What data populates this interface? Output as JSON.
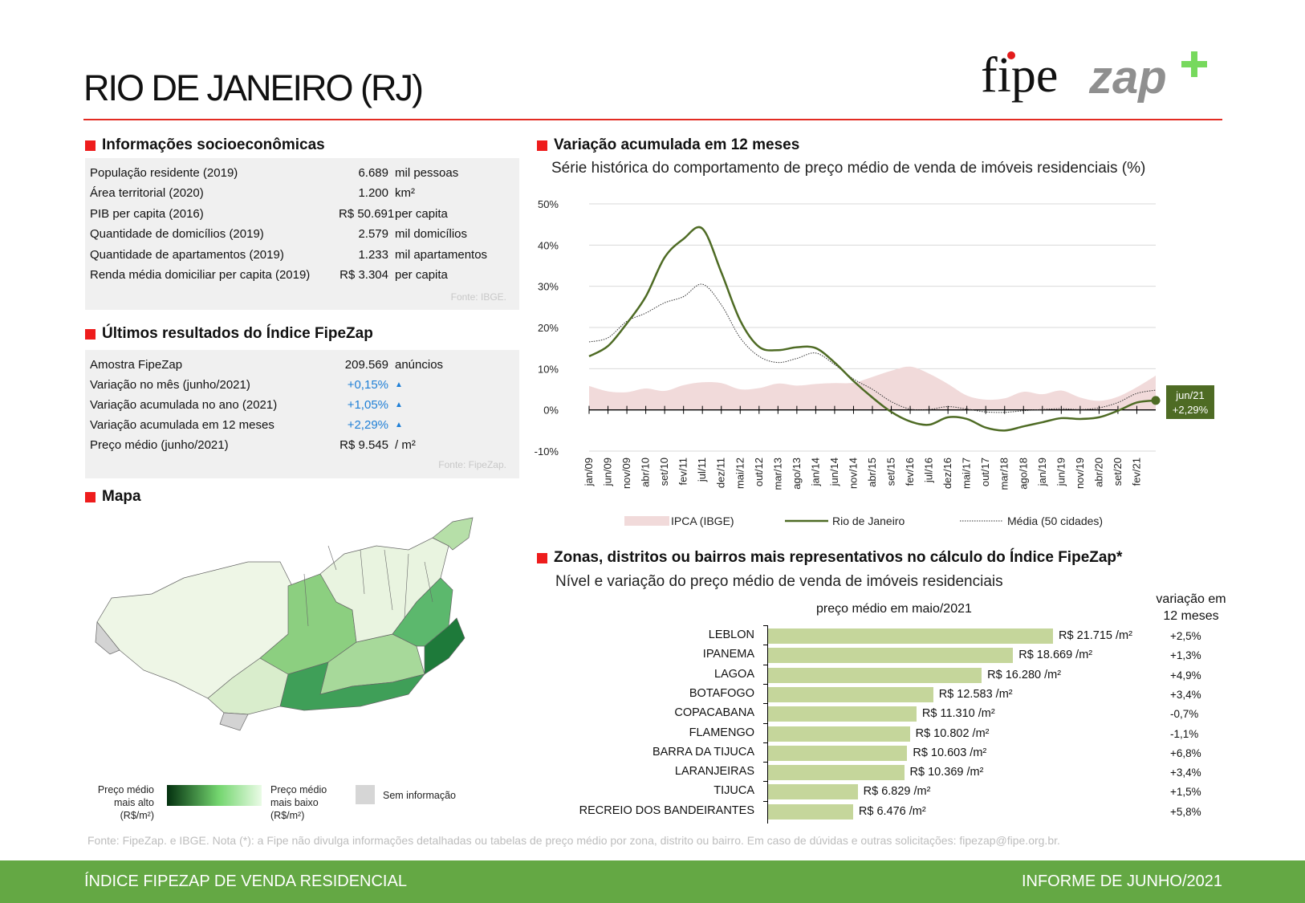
{
  "header": {
    "title": "RIO DE JANEIRO (RJ)",
    "logo_text": "fipe zap+"
  },
  "socio": {
    "heading": "Informações socioeconômicas",
    "rows": [
      {
        "label": "População residente (2019)",
        "value": "6.689",
        "unit": "mil pessoas"
      },
      {
        "label": "Área territorial (2020)",
        "value": "1.200",
        "unit": "km²"
      },
      {
        "label": "PIB per capita (2016)",
        "value": "R$ 50.691",
        "unit": "per capita"
      },
      {
        "label": "Quantidade de domicílios (2019)",
        "value": "2.579",
        "unit": "mil domicílios"
      },
      {
        "label": "Quantidade de apartamentos (2019)",
        "value": "1.233",
        "unit": "mil apartamentos"
      },
      {
        "label": "Renda média domiciliar per capita (2019)",
        "value": "R$ 3.304",
        "unit": "per capita"
      }
    ],
    "source": "Fonte: IBGE."
  },
  "results": {
    "heading": "Últimos resultados do Índice FipeZap",
    "rows": [
      {
        "label": "Amostra FipeZap",
        "value": "209.569",
        "unit": "anúncios"
      },
      {
        "label": "Variação no mês (junho/2021)",
        "value": "+0,15%",
        "unit": "▲"
      },
      {
        "label": "Variação acumulada no ano (2021)",
        "value": "+1,05%",
        "unit": "▲"
      },
      {
        "label": "Variação acumulada em 12 meses",
        "value": "+2,29%",
        "unit": "▲"
      },
      {
        "label": "Preço médio (junho/2021)",
        "value": "R$ 9.545",
        "unit": "/ m²"
      }
    ],
    "source": "Fonte: FipeZap."
  },
  "map": {
    "heading": "Mapa",
    "legend_high": "Preço médio mais alto (R$/m²)",
    "legend_low": "Preço médio mais baixo (R$/m²)",
    "legend_none": "Sem informação"
  },
  "chart_data": [
    {
      "type": "line",
      "heading": "Variação acumulada em 12 meses",
      "title": "Série histórica do comportamento de preço médio de venda de imóveis residenciais (%)",
      "ylim": [
        -10,
        50
      ],
      "yticks": [
        "50%",
        "40%",
        "30%",
        "20%",
        "10%",
        "0%",
        "-10%"
      ],
      "ytick_values": [
        50,
        40,
        30,
        20,
        10,
        0,
        -10
      ],
      "categories": [
        "jan/09",
        "jun/09",
        "nov/09",
        "abr/10",
        "set/10",
        "fev/11",
        "jul/11",
        "dez/11",
        "mai/12",
        "out/12",
        "mar/13",
        "ago/13",
        "jan/14",
        "jun/14",
        "nov/14",
        "abr/15",
        "set/15",
        "fev/16",
        "jul/16",
        "dez/16",
        "mai/17",
        "out/17",
        "mar/18",
        "ago/18",
        "jan/19",
        "jun/19",
        "nov/19",
        "abr/20",
        "set/20",
        "fev/21",
        "jun/21"
      ],
      "series": [
        {
          "name": "IPCA (IBGE)",
          "type": "area",
          "color": "#f1dada",
          "values": [
            5.8,
            4.5,
            4.3,
            5.2,
            4.6,
            6.0,
            6.7,
            6.5,
            5.0,
            5.3,
            6.4,
            5.9,
            6.3,
            6.5,
            6.6,
            8.0,
            9.5,
            10.5,
            8.8,
            6.3,
            3.5,
            2.5,
            2.8,
            4.4,
            3.8,
            4.7,
            3.0,
            2.2,
            3.2,
            5.5,
            8.3
          ]
        },
        {
          "name": "Rio de Janeiro",
          "type": "line",
          "color": "#4e6b24",
          "values": [
            13,
            15.5,
            21,
            27.5,
            37,
            41.5,
            44,
            33.4,
            21.7,
            15.3,
            14.5,
            15.2,
            15,
            11.5,
            7,
            3,
            -0.5,
            -2.8,
            -3.6,
            -1.8,
            -2.2,
            -4.3,
            -5,
            -4,
            -3,
            -2,
            -2.2,
            -1.8,
            -0.2,
            1.8,
            2.29
          ]
        },
        {
          "name": "Média (50 cidades)",
          "type": "dotted",
          "color": "#333333",
          "values": [
            16.5,
            17.5,
            21.5,
            23.5,
            26,
            27.5,
            30.5,
            25.5,
            17.5,
            13,
            11.5,
            12.5,
            13.8,
            11,
            7.5,
            5,
            2,
            0.2,
            0.1,
            0.8,
            0.2,
            -0.5,
            -0.6,
            -0.2,
            0.1,
            0.3,
            0.1,
            0.5,
            1.8,
            4,
            4.8
          ]
        }
      ],
      "annotation": {
        "label": "jun/21",
        "value": "+2,29%"
      },
      "legend": "bottom"
    },
    {
      "type": "bar",
      "heading": "Zonas, distritos ou bairros mais representativos no cálculo do Índice FipeZap*",
      "title": "Nível e variação do preço médio de venda de imóveis residenciais",
      "xlabel": "preço médio em maio/2021",
      "var_header": [
        "variação em",
        "12 meses"
      ],
      "color": "#c5d69b",
      "categories": [
        "LEBLON",
        "IPANEMA",
        "LAGOA",
        "BOTAFOGO",
        "COPACABANA",
        "FLAMENGO",
        "BARRA DA TIJUCA",
        "LARANJEIRAS",
        "TIJUCA",
        "RECREIO DOS BANDEIRANTES"
      ],
      "values": [
        21715,
        18669,
        16280,
        12583,
        11310,
        10802,
        10603,
        10369,
        6829,
        6476
      ],
      "value_labels": [
        "R$ 21.715 /m²",
        "R$ 18.669 /m²",
        "R$ 16.280 /m²",
        "R$ 12.583 /m²",
        "R$ 11.310 /m²",
        "R$ 10.802 /m²",
        "R$ 10.603 /m²",
        "R$ 10.369 /m²",
        "R$ 6.829 /m²",
        "R$ 6.476 /m²"
      ],
      "variation": [
        "+2,5%",
        "+1,3%",
        "+4,9%",
        "+3,4%",
        "-0,7%",
        "-1,1%",
        "+6,8%",
        "+3,4%",
        "+1,5%",
        "+5,8%"
      ]
    }
  ],
  "note": {
    "text": "Fonte: FipeZap. e IBGE. Nota (*): a Fipe não divulga informações detalhadas ou tabelas de preço médio por zona, distrito ou bairro. Em caso de dúvidas e outras solicitações: ",
    "email": "fipezap@fipe.org.br",
    "end": "."
  },
  "footer": {
    "left": "ÍNDICE FIPEZAP DE VENDA RESIDENCIAL",
    "right": "INFORME DE JUNHO/2021"
  }
}
